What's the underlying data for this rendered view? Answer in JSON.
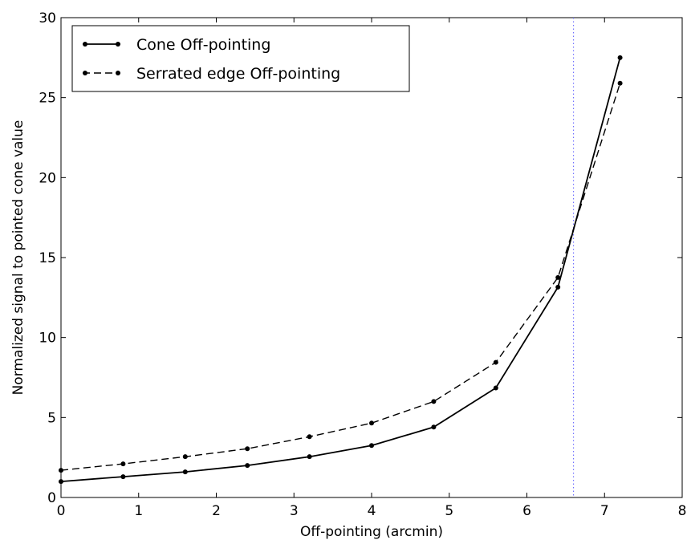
{
  "chart_data": {
    "type": "line",
    "title": "",
    "xlabel": "Off-pointing (arcmin)",
    "ylabel": "Normalized signal to pointed cone value",
    "xlim": [
      0,
      8
    ],
    "ylim": [
      0,
      30
    ],
    "xticks": [
      "0",
      "1",
      "2",
      "3",
      "4",
      "5",
      "6",
      "7",
      "8"
    ],
    "yticks": [
      "0",
      "5",
      "10",
      "15",
      "20",
      "25",
      "30"
    ],
    "grid": false,
    "legend_position": "top-left",
    "vline": {
      "x": 6.6,
      "color": "#7070ff",
      "style": "dotted"
    },
    "series": [
      {
        "name": "Cone Off-pointing",
        "style": "solid",
        "color": "#000000",
        "x": [
          0,
          0.8,
          1.6,
          2.4,
          3.2,
          4.0,
          4.8,
          5.6,
          6.4,
          7.2
        ],
        "y": [
          1.0,
          1.3,
          1.6,
          2.0,
          2.55,
          3.25,
          4.4,
          6.85,
          13.15,
          27.5
        ]
      },
      {
        "name": "Serrated edge Off-pointing",
        "style": "dashed",
        "color": "#000000",
        "x": [
          0,
          0.8,
          1.6,
          2.4,
          3.2,
          4.0,
          4.8,
          5.6,
          6.4,
          7.2
        ],
        "y": [
          1.7,
          2.1,
          2.55,
          3.05,
          3.8,
          4.65,
          6.0,
          8.45,
          13.75,
          25.9
        ]
      }
    ]
  }
}
